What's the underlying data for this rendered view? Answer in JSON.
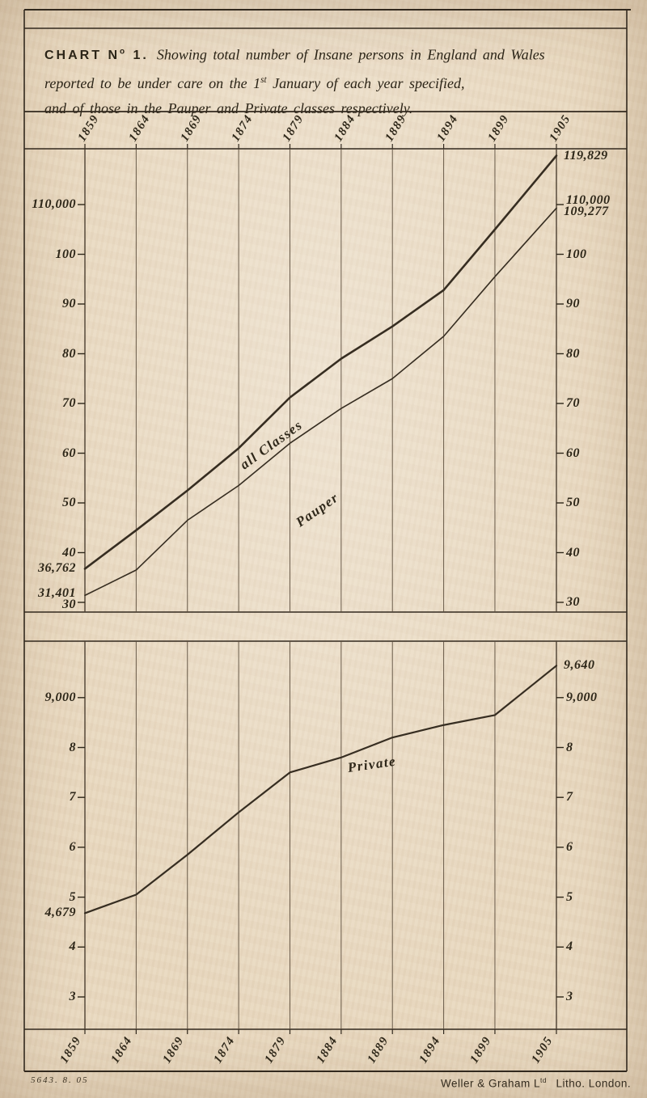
{
  "document": {
    "kind": "scanned lithograph statistical chart, England and Wales lunacy returns, 1859-1905"
  },
  "title": {
    "heading_segments": [
      {
        "t": "CHART N"
      },
      {
        "t": "o",
        "sup": true
      },
      {
        "t": " 1."
      }
    ],
    "line_segments": [
      [
        {
          "t": "Showing total number of Insane persons in England and Wales"
        }
      ],
      [
        {
          "t": "reported to be under care on the 1"
        },
        {
          "t": "st",
          "sup": true
        },
        {
          "t": " January of each year specified,"
        }
      ],
      [
        {
          "t": "and of those in the Pauper and Private classes respectively."
        }
      ]
    ]
  },
  "colors": {
    "paper": "#e9d9c0",
    "ink": "#2e2719",
    "series_line": "#362d21",
    "grid_line": "#5b4d3c",
    "border": "#32291e"
  },
  "chart_data": [
    {
      "type": "line",
      "panel": "upper",
      "title": "Total insane persons and Pauper class",
      "x": [
        1859,
        1864,
        1869,
        1874,
        1879,
        1884,
        1889,
        1894,
        1899,
        1905
      ],
      "series": [
        {
          "name": "all Classes",
          "values": [
            36762,
            44500,
            52500,
            61000,
            71200,
            79000,
            85500,
            92800,
            105000,
            119829
          ],
          "first_value_label": "36,762",
          "last_value_label": "119,829"
        },
        {
          "name": "Pauper",
          "values": [
            31401,
            36500,
            46500,
            53500,
            62000,
            69000,
            75000,
            83500,
            95500,
            109277
          ],
          "first_value_label": "31,401",
          "last_value_label": "109,277"
        }
      ],
      "yticks": [
        {
          "label": "110,000",
          "value": 110000
        },
        {
          "label": "100",
          "value": 100000
        },
        {
          "label": "90",
          "value": 90000
        },
        {
          "label": "80",
          "value": 80000
        },
        {
          "label": "70",
          "value": 70000
        },
        {
          "label": "60",
          "value": 60000
        },
        {
          "label": "50",
          "value": 50000
        },
        {
          "label": "40",
          "value": 40000
        },
        {
          "label": "30",
          "value": 30000
        }
      ],
      "annotations": {
        "left": [
          {
            "label": "36,762",
            "value": 36762
          },
          {
            "label": "31,401",
            "value": 31401
          }
        ],
        "right": [
          {
            "label": "119,829",
            "value": 119829
          },
          {
            "label": "109,277",
            "value": 109277
          }
        ]
      },
      "ylim": [
        30000,
        121200
      ],
      "grid": "vertical-year-gridlines-only",
      "legend": "labels written along the lines"
    },
    {
      "type": "line",
      "panel": "lower",
      "title": "Private class",
      "x": [
        1859,
        1864,
        1869,
        1874,
        1879,
        1884,
        1889,
        1894,
        1899,
        1905
      ],
      "series": [
        {
          "name": "Private",
          "values": [
            4679,
            5050,
            5850,
            6700,
            7500,
            7800,
            8200,
            8450,
            8650,
            9640
          ],
          "first_value_label": "4,679",
          "last_value_label": "9,640"
        }
      ],
      "yticks": [
        {
          "label": "9,000",
          "value": 9000
        },
        {
          "label": "8",
          "value": 8000
        },
        {
          "label": "7",
          "value": 7000
        },
        {
          "label": "6",
          "value": 6000
        },
        {
          "label": "5",
          "value": 5000
        },
        {
          "label": "4",
          "value": 4000
        },
        {
          "label": "3",
          "value": 3000
        }
      ],
      "annotations": {
        "left": [
          {
            "label": "4,679",
            "value": 4679
          }
        ],
        "right": [
          {
            "label": "9,640",
            "value": 9640
          }
        ]
      },
      "ylim": [
        2400,
        10100
      ],
      "grid": "vertical-year-gridlines-only",
      "legend": "labels written along the lines"
    }
  ],
  "footer": {
    "left": "5643. 8. 05",
    "right_segments": [
      {
        "t": "Weller & Graham L"
      },
      {
        "t": "td",
        "sup": true
      },
      {
        "t": "  Litho. London."
      }
    ]
  }
}
